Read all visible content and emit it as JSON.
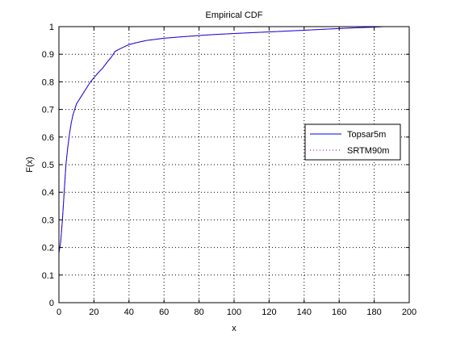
{
  "chart_data": {
    "type": "line",
    "title": "Empirical CDF",
    "xlabel": "x",
    "ylabel": "F(x)",
    "xlim": [
      0,
      200
    ],
    "ylim": [
      0,
      1
    ],
    "x_ticks": [
      0,
      20,
      40,
      60,
      80,
      100,
      120,
      140,
      160,
      180,
      200
    ],
    "y_ticks": [
      0,
      0.1,
      0.2,
      0.3,
      0.4,
      0.5,
      0.6,
      0.7,
      0.8,
      0.9,
      1
    ],
    "x_tick_labels": [
      "0",
      "20",
      "40",
      "60",
      "80",
      "100",
      "120",
      "140",
      "160",
      "180",
      "200"
    ],
    "y_tick_labels": [
      "0",
      "0.1",
      "0.2",
      "0.3",
      "0.4",
      "0.5",
      "0.6",
      "0.7",
      "0.8",
      "0.9",
      "1"
    ],
    "grid": true,
    "legend_position": "right",
    "series": [
      {
        "name": "Topsar5m",
        "color": "#0000ff",
        "line_style": "solid",
        "points": [
          [
            0,
            0.18
          ],
          [
            0.5,
            0.2
          ],
          [
            1,
            0.22
          ],
          [
            2,
            0.3
          ],
          [
            3,
            0.4
          ],
          [
            4,
            0.5
          ],
          [
            5,
            0.56
          ],
          [
            6,
            0.61
          ],
          [
            7,
            0.65
          ],
          [
            8,
            0.68
          ],
          [
            9,
            0.7
          ],
          [
            10,
            0.72
          ],
          [
            12,
            0.74
          ],
          [
            14,
            0.76
          ],
          [
            16,
            0.78
          ],
          [
            18,
            0.8
          ],
          [
            20,
            0.815
          ],
          [
            22,
            0.83
          ],
          [
            25,
            0.85
          ],
          [
            28,
            0.875
          ],
          [
            30,
            0.89
          ],
          [
            32,
            0.91
          ],
          [
            35,
            0.92
          ],
          [
            40,
            0.935
          ],
          [
            45,
            0.943
          ],
          [
            50,
            0.95
          ],
          [
            60,
            0.958
          ],
          [
            70,
            0.963
          ],
          [
            80,
            0.968
          ],
          [
            90,
            0.972
          ],
          [
            100,
            0.975
          ],
          [
            110,
            0.978
          ],
          [
            120,
            0.981
          ],
          [
            130,
            0.984
          ],
          [
            140,
            0.987
          ],
          [
            150,
            0.99
          ],
          [
            160,
            0.993
          ],
          [
            170,
            0.996
          ],
          [
            180,
            0.998
          ],
          [
            185,
            1.0
          ]
        ]
      },
      {
        "name": "SRTM90m",
        "color": "#800080",
        "line_style": "dotted",
        "points": [
          [
            0,
            0.18
          ],
          [
            0.5,
            0.2
          ],
          [
            1,
            0.22
          ],
          [
            2,
            0.3
          ],
          [
            3,
            0.4
          ],
          [
            4,
            0.5
          ],
          [
            5,
            0.56
          ],
          [
            6,
            0.61
          ],
          [
            7,
            0.65
          ],
          [
            8,
            0.68
          ],
          [
            9,
            0.7
          ],
          [
            10,
            0.72
          ],
          [
            12,
            0.74
          ],
          [
            14,
            0.76
          ],
          [
            16,
            0.78
          ],
          [
            18,
            0.8
          ],
          [
            20,
            0.815
          ],
          [
            22,
            0.83
          ],
          [
            25,
            0.85
          ],
          [
            28,
            0.875
          ],
          [
            30,
            0.89
          ],
          [
            32,
            0.91
          ],
          [
            35,
            0.92
          ],
          [
            40,
            0.935
          ],
          [
            45,
            0.943
          ],
          [
            50,
            0.95
          ],
          [
            60,
            0.958
          ],
          [
            70,
            0.963
          ],
          [
            80,
            0.968
          ],
          [
            90,
            0.972
          ],
          [
            100,
            0.975
          ],
          [
            110,
            0.978
          ],
          [
            120,
            0.981
          ],
          [
            130,
            0.984
          ],
          [
            140,
            0.987
          ],
          [
            150,
            0.99
          ],
          [
            160,
            0.993
          ],
          [
            170,
            0.996
          ],
          [
            180,
            0.998
          ],
          [
            185,
            1.0
          ]
        ]
      }
    ]
  }
}
